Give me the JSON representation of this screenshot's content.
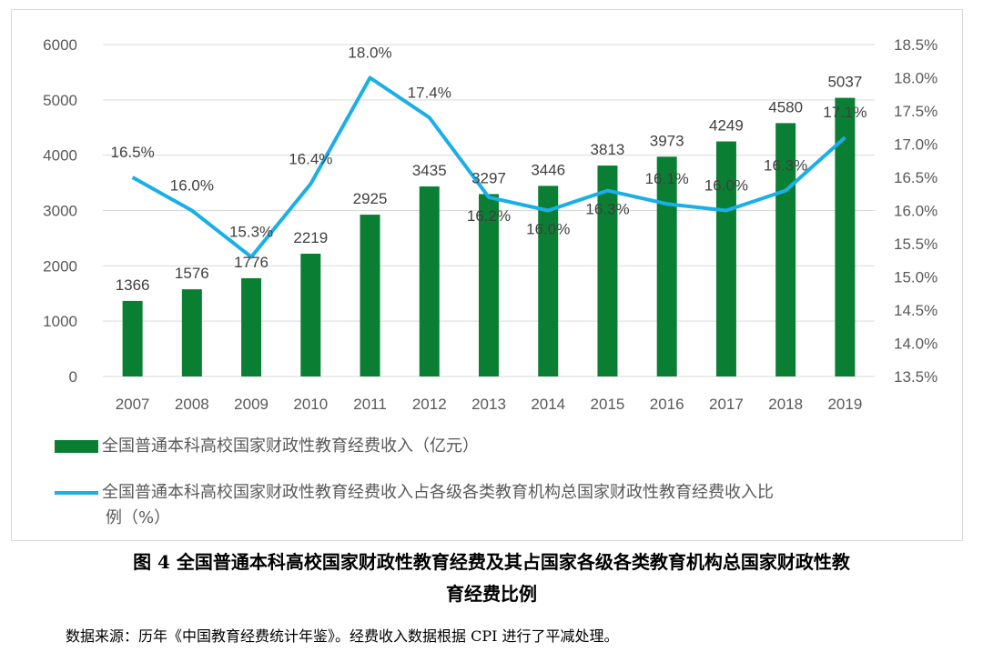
{
  "chart_data": {
    "type": "bar+line",
    "categories": [
      "2007",
      "2008",
      "2009",
      "2010",
      "2011",
      "2012",
      "2013",
      "2014",
      "2015",
      "2016",
      "2017",
      "2018",
      "2019"
    ],
    "series": [
      {
        "name": "全国普通本科高校国家财政性教育经费收入（亿元）",
        "type": "bar",
        "axis": "left",
        "color": "#0a7f33",
        "values": [
          1366,
          1576,
          1776,
          2219,
          2925,
          3435,
          3297,
          3446,
          3813,
          3973,
          4249,
          4580,
          5037
        ]
      },
      {
        "name": "全国普通本科高校国家财政性教育经费收入占各级各类教育机构总国家财政性教育经费收入比例（%）",
        "type": "line",
        "axis": "right",
        "color": "#1aafe6",
        "values": [
          16.5,
          16.0,
          15.3,
          16.4,
          18.0,
          17.4,
          16.2,
          16.0,
          16.3,
          16.1,
          16.0,
          16.3,
          17.1
        ]
      }
    ],
    "left_axis": {
      "ylim": [
        0,
        6000
      ],
      "ticks": [
        "0",
        "1000",
        "2000",
        "3000",
        "4000",
        "5000",
        "6000"
      ]
    },
    "right_axis": {
      "ylim": [
        13.5,
        18.5
      ],
      "ticks": [
        "13.5%",
        "14.0%",
        "14.5%",
        "15.0%",
        "15.5%",
        "16.0%",
        "16.5%",
        "17.0%",
        "17.5%",
        "18.0%",
        "18.5%"
      ]
    },
    "grid": true,
    "legend_placement": "bottom"
  },
  "legend": {
    "bar": "全国普通本科高校国家财政性教育经费收入（亿元）",
    "line_1": "全国普通本科高校国家财政性教育经费收入占各级各类教育机构总国家财政性教育经费收入比",
    "line_2": "例（%）"
  },
  "caption": {
    "line_1": "图 4  全国普通本科高校国家财政性教育经费及其占国家各级各类教育机构总国家财政性教",
    "line_2": "育经费比例"
  },
  "source": "数据来源：历年《中国教育经费统计年鉴》。经费收入数据根据 CPI 进行了平减处理。"
}
